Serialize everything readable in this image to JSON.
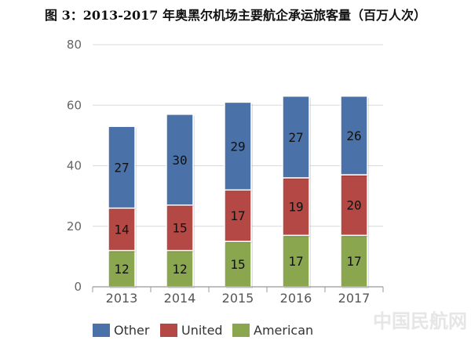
{
  "title": "图 3：2013-2017 年奥黑尔机场主要航企承运旅客量（百万人次）",
  "watermark": "中国民航网",
  "chart_data": {
    "type": "bar",
    "stacked": true,
    "categories": [
      "2013",
      "2014",
      "2015",
      "2016",
      "2017"
    ],
    "series": [
      {
        "name": "American",
        "color": "#8aa64e",
        "values": [
          12,
          12,
          15,
          17,
          17
        ]
      },
      {
        "name": "United",
        "color": "#b34845",
        "values": [
          14,
          15,
          17,
          19,
          20
        ]
      },
      {
        "name": "Other",
        "color": "#4a72a8",
        "values": [
          27,
          30,
          29,
          27,
          26
        ]
      }
    ],
    "ylim": [
      0,
      80
    ],
    "yticks": [
      0,
      20,
      40,
      60,
      80
    ],
    "grid": true,
    "legend": "bottom",
    "legend_order": [
      "Other",
      "United",
      "American"
    ]
  }
}
